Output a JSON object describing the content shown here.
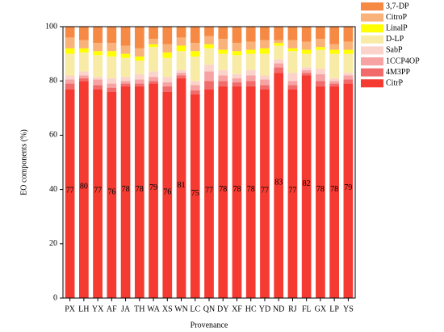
{
  "chart_data": {
    "type": "stacked_bar",
    "y_label": "EO components (%)",
    "x_label": "Provenance",
    "categories": [
      "PX",
      "LH",
      "YX",
      "AF",
      "JA",
      "TH",
      "WA",
      "XS",
      "WN",
      "LC",
      "QN",
      "DY",
      "XF",
      "HC",
      "YD",
      "ND",
      "RJ",
      "FL",
      "GX",
      "LP",
      "YS"
    ],
    "series": [
      {
        "name": "CitrP",
        "color": "#f53a32",
        "values": [
          77,
          80,
          77,
          76,
          78,
          78,
          79,
          76,
          81,
          75,
          77,
          78,
          78,
          78,
          77,
          83,
          77,
          82,
          78,
          78,
          79
        ]
      },
      {
        "name": "4M3PP",
        "color": "#f26b6b",
        "values": [
          2,
          1,
          1.5,
          1.5,
          1,
          1,
          1,
          2,
          1,
          1.5,
          3,
          2,
          1.5,
          2,
          1.5,
          2,
          1.5,
          1,
          2,
          1,
          1.5
        ]
      },
      {
        "name": "1CCP4OP",
        "color": "#f7a3a3",
        "values": [
          1.5,
          1,
          2,
          1.5,
          1,
          1.5,
          1.5,
          1.5,
          1,
          2,
          3.5,
          2,
          1.5,
          2,
          2,
          1.5,
          1.5,
          1,
          2.5,
          1,
          1.5
        ]
      },
      {
        "name": "SabP",
        "color": "#fbd3cb",
        "values": [
          1.5,
          1.5,
          1,
          2,
          1.5,
          2,
          2,
          2,
          1,
          1.5,
          2.5,
          2,
          1.5,
          2,
          1.5,
          1.5,
          3,
          1,
          2,
          1,
          1
        ]
      },
      {
        "name": "D-LP",
        "color": "#f8eba6",
        "values": [
          8,
          7,
          8,
          8,
          7,
          5,
          9,
          7,
          7,
          9,
          6,
          6,
          7,
          6,
          8,
          5,
          8,
          5,
          7,
          9,
          7
        ]
      },
      {
        "name": "LinalP",
        "color": "#ffff00",
        "values": [
          2,
          1.5,
          1.5,
          2,
          1.5,
          1.5,
          1,
          2,
          2,
          2,
          1.5,
          1.5,
          1.5,
          1.5,
          2,
          1,
          1,
          1.5,
          1,
          1.5,
          1.5
        ]
      },
      {
        "name": "CitroP",
        "color": "#f9b27a",
        "values": [
          4,
          3,
          3,
          3,
          3,
          3,
          2,
          3,
          3,
          3,
          3,
          4,
          3,
          3,
          3,
          1,
          3,
          3,
          3,
          2,
          3
        ]
      },
      {
        "name": "3,7-DP",
        "color": "#f68a45",
        "values": [
          4,
          5,
          6,
          6,
          7,
          8,
          4.5,
          6.5,
          4,
          6,
          3.5,
          4.5,
          6,
          5.5,
          5,
          5,
          5,
          5.5,
          4.5,
          6.5,
          5.5
        ]
      }
    ],
    "ylim": [
      0,
      100
    ],
    "yticks": [
      0,
      20,
      40,
      60,
      80,
      100
    ]
  }
}
